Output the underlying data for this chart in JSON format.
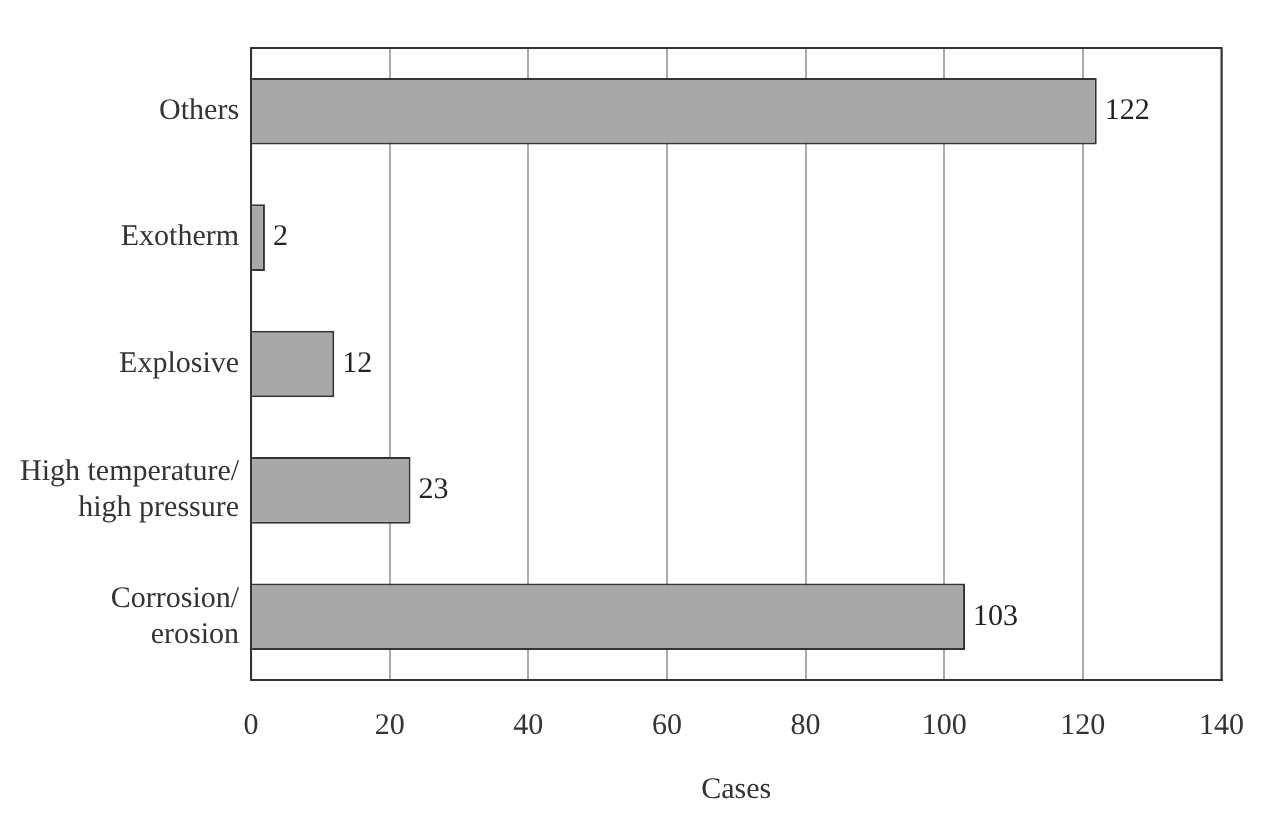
{
  "chart_data": {
    "type": "bar",
    "orientation": "horizontal",
    "xlabel": "Cases",
    "categories": [
      "Others",
      "Exotherm",
      "Explosive",
      "High temperature/\nhigh pressure",
      "Corrosion/\nerosion"
    ],
    "values": [
      122,
      2,
      12,
      23,
      103
    ],
    "color": "#a8a8a8",
    "xlim": [
      0,
      140
    ],
    "xticks": [
      0,
      20,
      40,
      60,
      80,
      100,
      120,
      140
    ],
    "grid": "x",
    "data_labels": true
  }
}
